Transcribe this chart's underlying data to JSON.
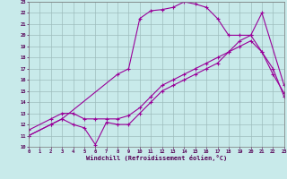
{
  "xlabel": "Windchill (Refroidissement éolien,°C)",
  "xlim": [
    0,
    23
  ],
  "ylim": [
    10,
    23
  ],
  "xticks": [
    0,
    1,
    2,
    3,
    4,
    5,
    6,
    7,
    8,
    9,
    10,
    11,
    12,
    13,
    14,
    15,
    16,
    17,
    18,
    19,
    20,
    21,
    22,
    23
  ],
  "yticks": [
    10,
    11,
    12,
    13,
    14,
    15,
    16,
    17,
    18,
    19,
    20,
    21,
    22,
    23
  ],
  "bg_color": "#c8eaea",
  "grid_color": "#9dbdbd",
  "line_color": "#990099",
  "curve1_x": [
    0,
    2,
    3,
    4,
    5,
    6,
    7,
    8,
    9,
    10,
    11,
    12,
    13,
    14,
    15,
    16,
    17,
    18,
    19,
    20,
    21,
    22,
    23
  ],
  "curve1_y": [
    11.5,
    12.5,
    13.0,
    13.0,
    12.5,
    12.5,
    12.5,
    12.5,
    12.8,
    13.5,
    14.5,
    15.5,
    16.0,
    16.5,
    17.0,
    17.5,
    18.0,
    18.5,
    19.0,
    19.5,
    18.5,
    17.0,
    14.5
  ],
  "curve2_x": [
    0,
    2,
    3,
    4,
    5,
    6,
    7,
    8,
    9,
    10,
    11,
    12,
    13,
    14,
    15,
    16,
    17,
    18,
    19,
    20,
    21,
    22,
    23
  ],
  "curve2_y": [
    11.0,
    12.0,
    12.5,
    12.0,
    11.7,
    10.2,
    12.2,
    12.0,
    12.0,
    13.0,
    14.0,
    15.0,
    15.5,
    16.0,
    16.5,
    17.0,
    17.5,
    18.5,
    19.5,
    20.0,
    18.5,
    16.5,
    14.8
  ],
  "curve3_x": [
    0,
    2,
    3,
    8,
    9,
    10,
    11,
    12,
    13,
    14,
    15,
    16,
    17,
    18,
    19,
    20,
    21,
    23
  ],
  "curve3_y": [
    11.0,
    12.0,
    12.5,
    16.5,
    17.0,
    21.5,
    22.2,
    22.3,
    22.5,
    23.0,
    22.8,
    22.5,
    21.5,
    20.0,
    20.0,
    20.0,
    22.0,
    15.5
  ]
}
